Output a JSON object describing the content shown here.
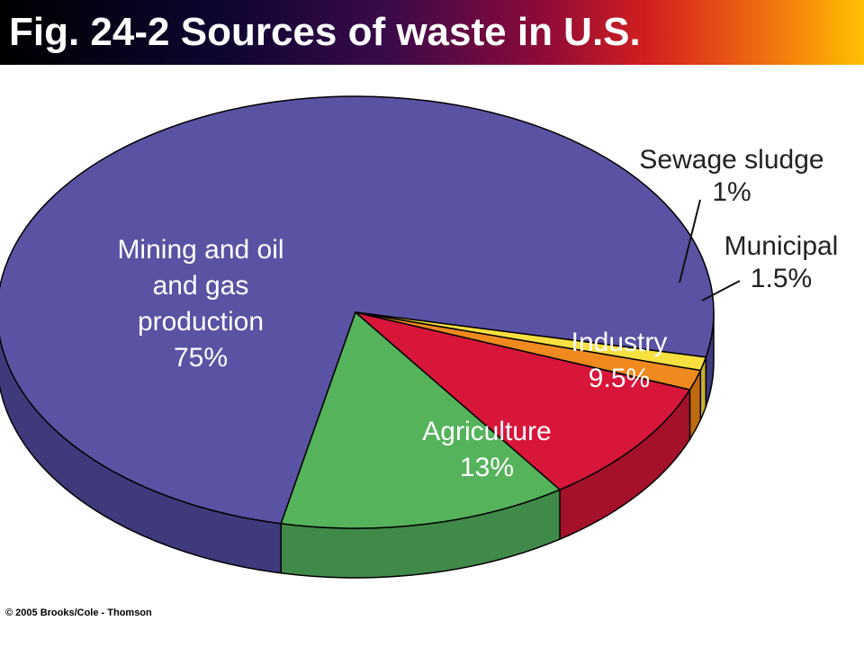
{
  "slide": {
    "title": "Fig. 24-2 Sources of waste in U.S.",
    "copyright": "© 2005 Brooks/Cole - Thomson"
  },
  "chart_data": {
    "type": "pie",
    "title": "Fig. 24-2 Sources of waste in U.S.",
    "three_d": true,
    "slices": [
      {
        "name": "Mining and oil and gas production",
        "label_lines": [
          "Mining and oil",
          "and gas",
          "production",
          "75%"
        ],
        "value": 75,
        "color": "#5a52a3",
        "side_color": "#3e3a7c",
        "label_color": "#ffffff"
      },
      {
        "name": "Agriculture",
        "label_lines": [
          "Agriculture",
          "13%"
        ],
        "value": 13,
        "color": "#55b35c",
        "side_color": "#3f8a48",
        "label_color": "#ffffff"
      },
      {
        "name": "Industry",
        "label_lines": [
          "Industry",
          "9.5%"
        ],
        "value": 9.5,
        "color": "#d8163a",
        "side_color": "#a5102b",
        "label_color": "#ffffff"
      },
      {
        "name": "Municipal",
        "label_lines": [
          "Municipal",
          "1.5%"
        ],
        "value": 1.5,
        "color": "#f08a1e",
        "side_color": "#c06a10",
        "label_color": "#222222"
      },
      {
        "name": "Sewage sludge",
        "label_lines": [
          "Sewage sludge",
          "1%"
        ],
        "value": 1,
        "color": "#f8e040",
        "side_color": "#c8b030",
        "label_color": "#222222"
      }
    ]
  }
}
